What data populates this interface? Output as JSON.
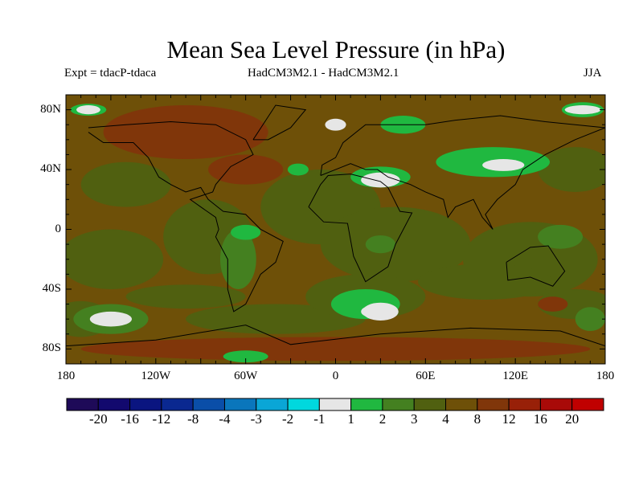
{
  "chart_data": {
    "type": "heatmap",
    "title": "Mean Sea Level Pressure (in hPa)",
    "left_label": "Expt = tdacP-tdaca",
    "center_label": "HadCM3M2.1 - HadCM3M2.1",
    "right_label": "JJA",
    "projection": "cylindrical equidistant",
    "lon_range": [
      -180,
      180
    ],
    "lat_range": [
      -90,
      90
    ],
    "x_ticks": [
      {
        "value": -180,
        "label": "180"
      },
      {
        "value": -120,
        "label": "120W"
      },
      {
        "value": -60,
        "label": "60W"
      },
      {
        "value": 0,
        "label": "0"
      },
      {
        "value": 60,
        "label": "60E"
      },
      {
        "value": 120,
        "label": "120E"
      },
      {
        "value": 180,
        "label": "180"
      }
    ],
    "y_ticks": [
      {
        "value": 80,
        "label": "80N"
      },
      {
        "value": 40,
        "label": "40N"
      },
      {
        "value": 0,
        "label": "0"
      },
      {
        "value": -40,
        "label": "40S"
      },
      {
        "value": -80,
        "label": "80S"
      }
    ],
    "colorbar": {
      "labels": [
        "-20",
        "-16",
        "-12",
        "-8",
        "-4",
        "-3",
        "-2",
        "-1",
        "1",
        "2",
        "3",
        "4",
        "8",
        "12",
        "16",
        "20"
      ],
      "colors": [
        "#1e0a58",
        "#12096e",
        "#0a1580",
        "#0a2890",
        "#0a4ea8",
        "#0a76bc",
        "#0aa6d6",
        "#00d8de",
        "#e6e6e6",
        "#20b840",
        "#448020",
        "#506010",
        "#6e5008",
        "#80360a",
        "#982008",
        "#a80a08",
        "#c00000"
      ]
    }
  }
}
